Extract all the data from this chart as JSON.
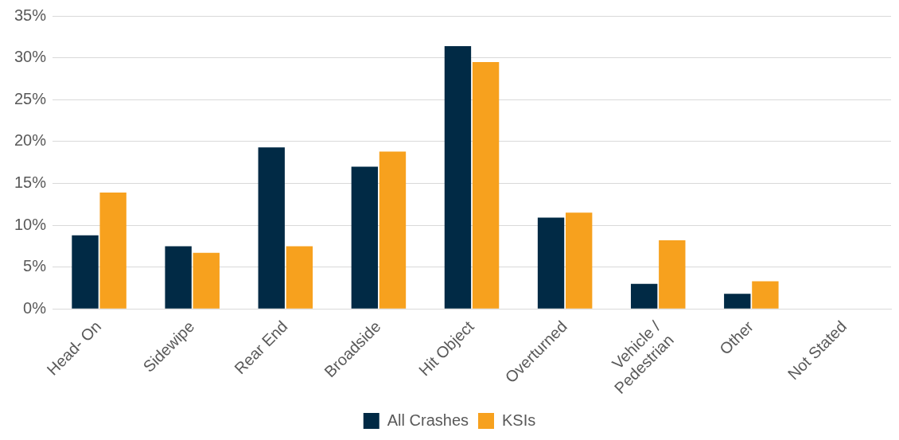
{
  "chart_data": {
    "type": "bar",
    "categories": [
      "Head- On",
      "Sidewipe",
      "Rear End",
      "Broadside",
      "Hit Object",
      "Overturned",
      "Vehicle / Pedestrian",
      "Other",
      "Not Stated"
    ],
    "series": [
      {
        "name": "All Crashes",
        "color": "#012a45",
        "values": [
          8.8,
          7.5,
          19.3,
          17.0,
          31.4,
          10.9,
          3.0,
          1.8,
          0
        ]
      },
      {
        "name": "KSIs",
        "color": "#f7a11e",
        "values": [
          13.9,
          6.7,
          7.5,
          18.8,
          29.5,
          11.5,
          8.2,
          3.3,
          0
        ]
      }
    ],
    "ylim": [
      0,
      35
    ],
    "yticks": [
      {
        "value": 0,
        "label": "0%"
      },
      {
        "value": 5,
        "label": "5%"
      },
      {
        "value": 10,
        "label": "10%"
      },
      {
        "value": 15,
        "label": "15%"
      },
      {
        "value": 20,
        "label": "20%"
      },
      {
        "value": 25,
        "label": "25%"
      },
      {
        "value": 30,
        "label": "30%"
      },
      {
        "value": 35,
        "label": "35%"
      }
    ],
    "grid": "y",
    "legend": "bottom"
  }
}
